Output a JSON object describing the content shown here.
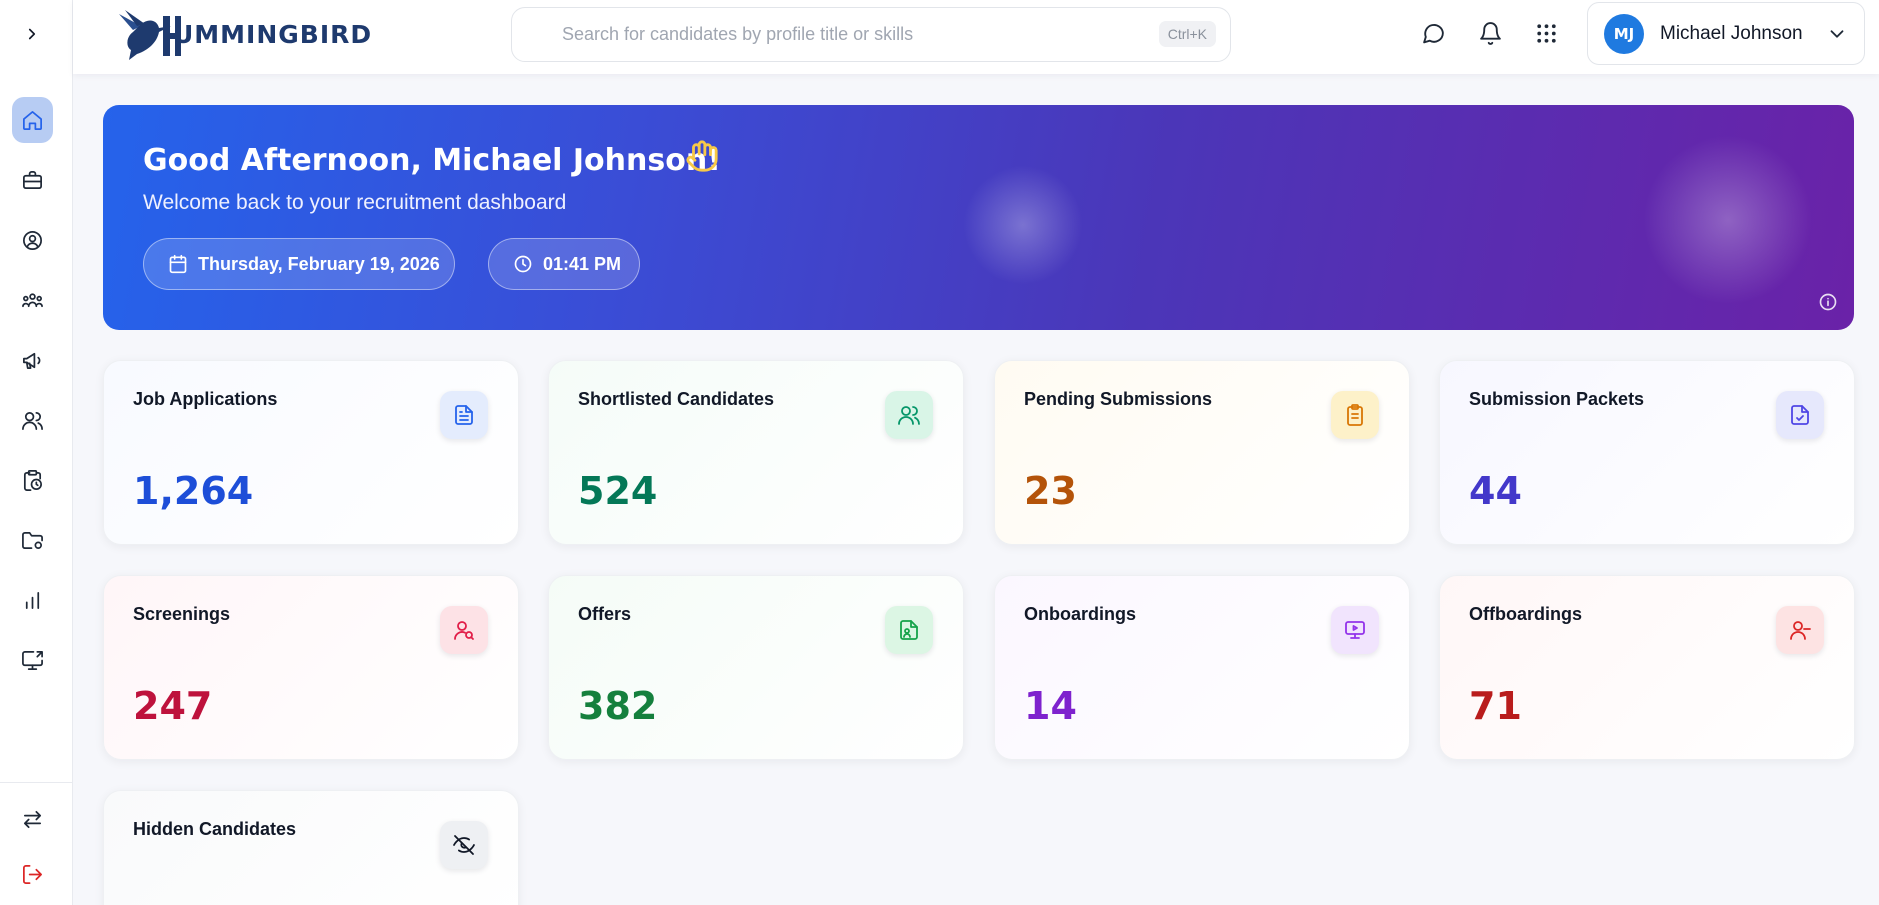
{
  "app": {
    "logo_text": "UMMINGBIRD"
  },
  "search": {
    "placeholder": "Search for candidates by profile title or skills",
    "shortcut": "Ctrl+K"
  },
  "header_icons": [
    "chat-icon",
    "bell-icon",
    "apps-grid-icon"
  ],
  "user": {
    "initials": "MJ",
    "name": "Michael Johnson"
  },
  "sidebar": {
    "items": [
      "home-icon",
      "briefcase-icon",
      "user-circle-icon",
      "team-icon",
      "megaphone-icon",
      "users-icon",
      "clipboard-clock-icon",
      "folder-settings-icon",
      "bar-chart-icon",
      "monitor-share-icon"
    ],
    "bottom": [
      "switch-icon",
      "logout-icon"
    ]
  },
  "banner": {
    "greeting": "Good Afternoon, Michael Johnson!",
    "subtitle": "Welcome back to your recruitment dashboard",
    "date": "Thursday, February 19, 2026",
    "time": "01:41 PM"
  },
  "stats": [
    {
      "title": "Job Applications",
      "value": "1,264",
      "icon": "document-icon",
      "color": "#1d4ed8"
    },
    {
      "title": "Shortlisted Candidates",
      "value": "524",
      "icon": "users-icon",
      "color": "#047857"
    },
    {
      "title": "Pending Submissions",
      "value": "23",
      "icon": "clipboard-icon",
      "color": "#b45309"
    },
    {
      "title": "Submission Packets",
      "value": "44",
      "icon": "file-check-icon",
      "color": "#4338ca"
    },
    {
      "title": "Screenings",
      "value": "247",
      "icon": "user-search-icon",
      "color": "#be123c"
    },
    {
      "title": "Offers",
      "value": "382",
      "icon": "file-user-icon",
      "color": "#15803d"
    },
    {
      "title": "Onboardings",
      "value": "14",
      "icon": "presentation-icon",
      "color": "#7e22ce"
    },
    {
      "title": "Offboardings",
      "value": "71",
      "icon": "user-minus-icon",
      "color": "#b91c1c"
    },
    {
      "title": "Hidden Candidates",
      "value": "",
      "icon": "eye-off-icon",
      "color": "#111827"
    }
  ]
}
